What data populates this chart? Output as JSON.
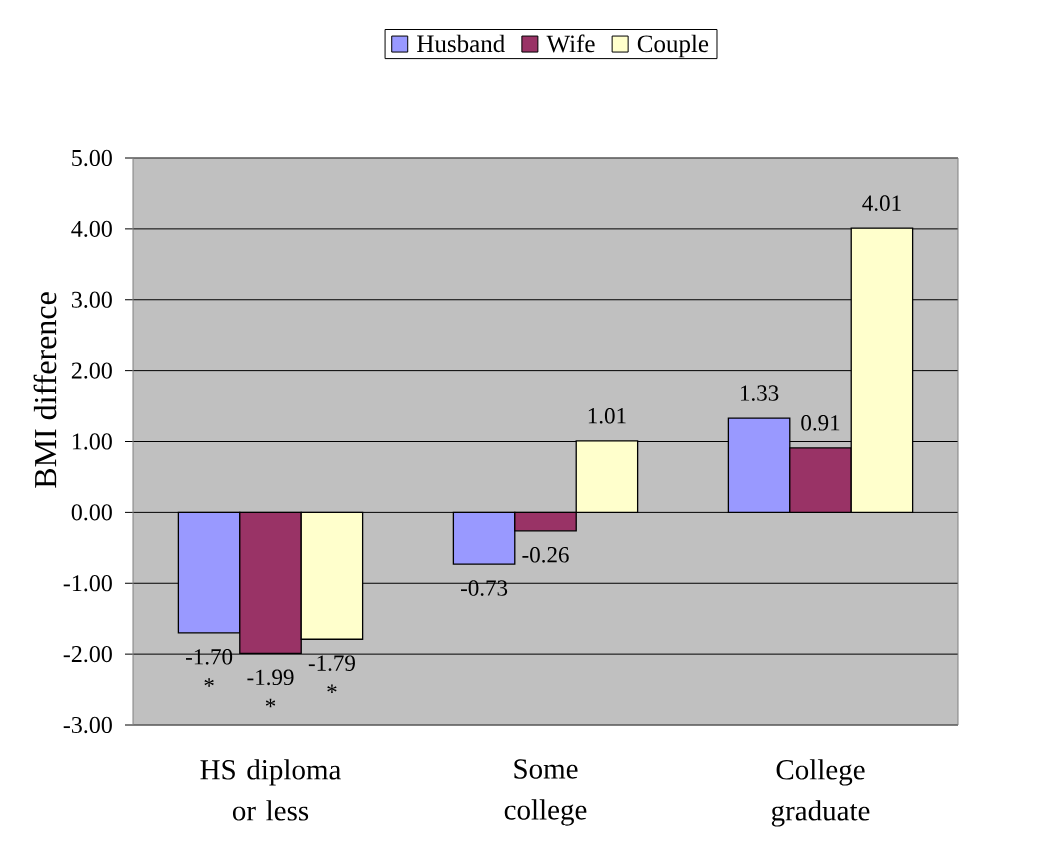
{
  "chart_data": {
    "type": "bar",
    "ylabel": "BMI difference",
    "categories": [
      "HS diploma or less",
      "Some college",
      "College graduate"
    ],
    "series": [
      {
        "name": "Husband",
        "color": "#9999ff",
        "values": [
          -1.7,
          -0.73,
          1.33
        ],
        "value_labels": [
          "-1.70 *",
          "-0.73",
          "1.33"
        ]
      },
      {
        "name": "Wife",
        "color": "#993366",
        "values": [
          -1.99,
          -0.26,
          0.91
        ],
        "value_labels": [
          "-1.99 *",
          "-0.26",
          "0.91"
        ]
      },
      {
        "name": "Couple",
        "color": "#ffffcc",
        "values": [
          -1.79,
          1.01,
          4.01
        ],
        "value_labels": [
          "-1.79 *",
          "1.01",
          "4.01"
        ]
      }
    ],
    "ylim": [
      -3,
      5
    ],
    "yticks": [
      {
        "value": -3,
        "label": "-3.00"
      },
      {
        "value": -2,
        "label": "-2.00"
      },
      {
        "value": -1,
        "label": "-1.00"
      },
      {
        "value": 0,
        "label": "0.00"
      },
      {
        "value": 1,
        "label": "1.00"
      },
      {
        "value": 2,
        "label": "2.00"
      },
      {
        "value": 3,
        "label": "3.00"
      },
      {
        "value": 4,
        "label": "4.00"
      },
      {
        "value": 5,
        "label": "5.00"
      }
    ],
    "grid": "y",
    "legend": "top"
  }
}
